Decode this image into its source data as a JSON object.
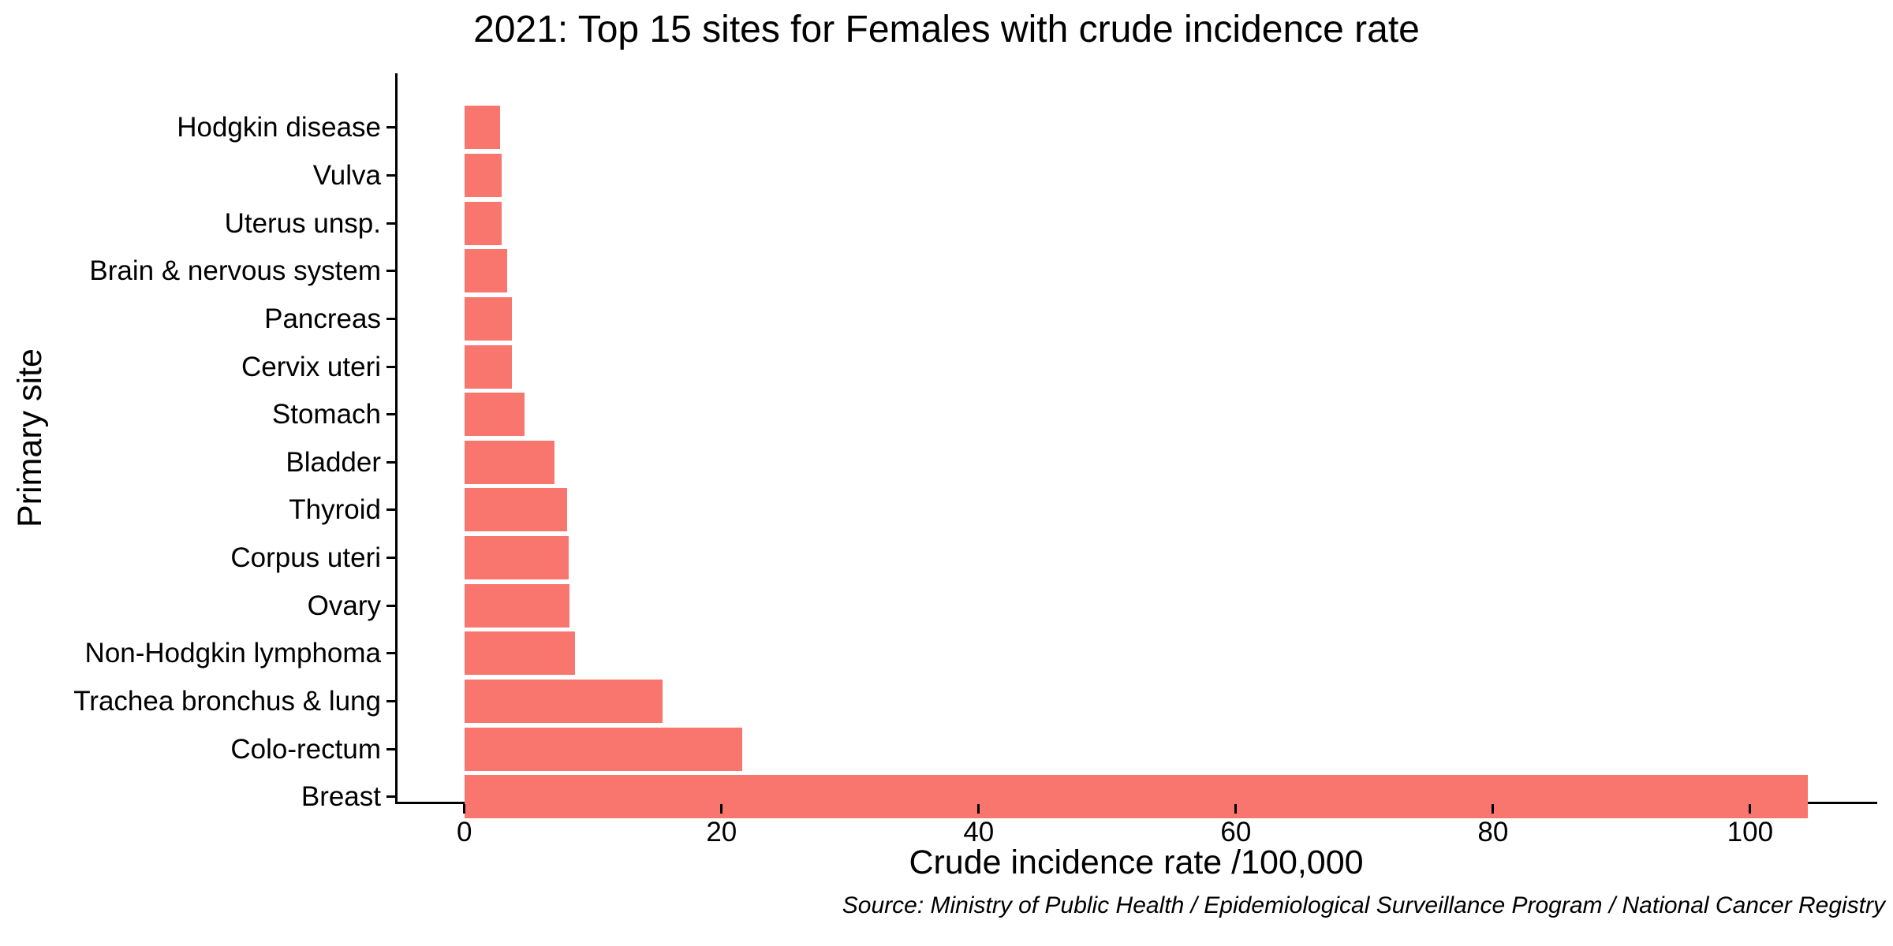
{
  "chart_data": {
    "type": "bar",
    "orientation": "horizontal",
    "title": "2021: Top 15 sites for Females with crude incidence rate",
    "xlabel": "Crude incidence rate /100,000",
    "ylabel": "Primary site",
    "source_caption": "Source: Ministry of Public Health / Epidemiological Surveillance Program / National Cancer Registry",
    "categories_top_to_bottom": [
      "Hodgkin disease",
      "Vulva",
      "Uterus unsp.",
      "Brain & nervous system",
      "Pancreas",
      "Cervix uteri",
      "Stomach",
      "Bladder",
      "Thyroid",
      "Corpus uteri",
      "Ovary",
      "Non-Hodgkin lymphoma",
      "Trachea bronchus & lung",
      "Colo-rectum",
      "Breast"
    ],
    "values": [
      2.8,
      2.9,
      2.9,
      3.3,
      3.7,
      3.7,
      4.7,
      7.0,
      8.0,
      8.1,
      8.2,
      8.6,
      15.4,
      21.6,
      104.5
    ],
    "x_ticks": [
      0,
      20,
      40,
      60,
      80,
      100
    ],
    "xlim": [
      -5.2,
      109.7
    ],
    "grid": "off",
    "legend": "none",
    "bar_color": "#F8766D",
    "axis_color": "#000000",
    "background_color": "#FFFFFF"
  }
}
